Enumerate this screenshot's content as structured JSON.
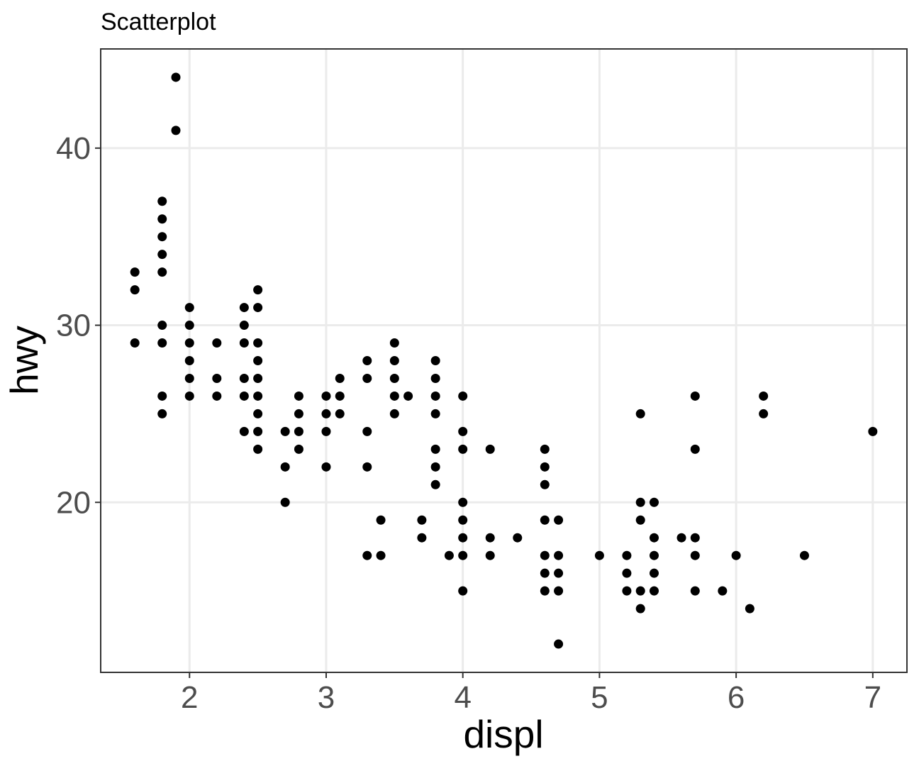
{
  "chart_data": {
    "type": "scatter",
    "title": "Scatterplot",
    "xlabel": "displ",
    "ylabel": "hwy",
    "xlim": [
      1.35,
      7.25
    ],
    "ylim": [
      10.4,
      45.6
    ],
    "xticks": [
      2,
      3,
      4,
      5,
      6,
      7
    ],
    "yticks": [
      20,
      30,
      40
    ],
    "xtick_labels": [
      "2",
      "3",
      "4",
      "5",
      "6",
      "7"
    ],
    "ytick_labels": [
      "20",
      "30",
      "40"
    ],
    "grid": true,
    "point_color": "#000000",
    "points": [
      [
        1.6,
        33
      ],
      [
        1.6,
        32
      ],
      [
        1.6,
        29
      ],
      [
        1.8,
        37
      ],
      [
        1.8,
        36
      ],
      [
        1.8,
        35
      ],
      [
        1.8,
        34
      ],
      [
        1.8,
        33
      ],
      [
        1.8,
        30
      ],
      [
        1.8,
        29
      ],
      [
        1.8,
        26
      ],
      [
        1.8,
        25
      ],
      [
        1.9,
        44
      ],
      [
        1.9,
        41
      ],
      [
        2.0,
        31
      ],
      [
        2.0,
        30
      ],
      [
        2.0,
        29
      ],
      [
        2.0,
        28
      ],
      [
        2.0,
        27
      ],
      [
        2.0,
        26
      ],
      [
        2.2,
        29
      ],
      [
        2.2,
        27
      ],
      [
        2.2,
        26
      ],
      [
        2.4,
        31
      ],
      [
        2.4,
        30
      ],
      [
        2.4,
        29
      ],
      [
        2.4,
        27
      ],
      [
        2.4,
        26
      ],
      [
        2.4,
        24
      ],
      [
        2.5,
        32
      ],
      [
        2.5,
        31
      ],
      [
        2.5,
        29
      ],
      [
        2.5,
        28
      ],
      [
        2.5,
        27
      ],
      [
        2.5,
        26
      ],
      [
        2.5,
        25
      ],
      [
        2.5,
        24
      ],
      [
        2.5,
        23
      ],
      [
        2.7,
        24
      ],
      [
        2.7,
        22
      ],
      [
        2.7,
        20
      ],
      [
        2.8,
        26
      ],
      [
        2.8,
        25
      ],
      [
        2.8,
        24
      ],
      [
        2.8,
        23
      ],
      [
        3.0,
        26
      ],
      [
        3.0,
        25
      ],
      [
        3.0,
        24
      ],
      [
        3.0,
        22
      ],
      [
        3.1,
        27
      ],
      [
        3.1,
        26
      ],
      [
        3.1,
        25
      ],
      [
        3.3,
        28
      ],
      [
        3.3,
        27
      ],
      [
        3.3,
        24
      ],
      [
        3.3,
        22
      ],
      [
        3.3,
        17
      ],
      [
        3.4,
        19
      ],
      [
        3.4,
        17
      ],
      [
        3.5,
        29
      ],
      [
        3.5,
        28
      ],
      [
        3.5,
        27
      ],
      [
        3.5,
        26
      ],
      [
        3.5,
        25
      ],
      [
        3.6,
        26
      ],
      [
        3.7,
        19
      ],
      [
        3.7,
        18
      ],
      [
        3.8,
        28
      ],
      [
        3.8,
        27
      ],
      [
        3.8,
        26
      ],
      [
        3.8,
        25
      ],
      [
        3.8,
        23
      ],
      [
        3.8,
        22
      ],
      [
        3.8,
        21
      ],
      [
        3.9,
        17
      ],
      [
        4.0,
        26
      ],
      [
        4.0,
        24
      ],
      [
        4.0,
        23
      ],
      [
        4.0,
        20
      ],
      [
        4.0,
        19
      ],
      [
        4.0,
        18
      ],
      [
        4.0,
        17
      ],
      [
        4.0,
        15
      ],
      [
        4.2,
        23
      ],
      [
        4.2,
        18
      ],
      [
        4.2,
        17
      ],
      [
        4.4,
        18
      ],
      [
        4.6,
        23
      ],
      [
        4.6,
        22
      ],
      [
        4.6,
        21
      ],
      [
        4.6,
        19
      ],
      [
        4.6,
        17
      ],
      [
        4.6,
        16
      ],
      [
        4.6,
        15
      ],
      [
        4.7,
        19
      ],
      [
        4.7,
        17
      ],
      [
        4.7,
        16
      ],
      [
        4.7,
        15
      ],
      [
        4.7,
        12
      ],
      [
        5.0,
        17
      ],
      [
        5.2,
        17
      ],
      [
        5.2,
        16
      ],
      [
        5.2,
        15
      ],
      [
        5.3,
        25
      ],
      [
        5.3,
        20
      ],
      [
        5.3,
        19
      ],
      [
        5.3,
        15
      ],
      [
        5.3,
        14
      ],
      [
        5.4,
        20
      ],
      [
        5.4,
        18
      ],
      [
        5.4,
        17
      ],
      [
        5.4,
        16
      ],
      [
        5.4,
        15
      ],
      [
        5.6,
        18
      ],
      [
        5.7,
        26
      ],
      [
        5.7,
        23
      ],
      [
        5.7,
        18
      ],
      [
        5.7,
        17
      ],
      [
        5.7,
        15
      ],
      [
        5.9,
        15
      ],
      [
        6.0,
        17
      ],
      [
        6.1,
        14
      ],
      [
        6.2,
        26
      ],
      [
        6.2,
        25
      ],
      [
        6.5,
        17
      ],
      [
        7.0,
        24
      ]
    ]
  }
}
